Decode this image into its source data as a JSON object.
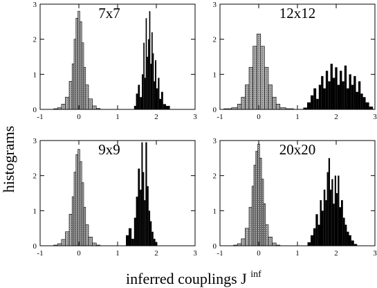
{
  "figure": {
    "ylabel": "histograms",
    "xlabel_main": "inferred couplings J",
    "xlabel_sup": "inf"
  },
  "colors": {
    "left_fill": "#a8a8a8",
    "right_fill": "#000000",
    "axes": "#000000"
  },
  "chart_data": [
    {
      "type": "histogram",
      "title": "7x7",
      "xlim": [
        -1,
        3
      ],
      "ylim": [
        0,
        3
      ],
      "xticks": [
        "-1",
        "0",
        "1",
        "2",
        "3"
      ],
      "yticks": [
        "0",
        "1",
        "2",
        "3"
      ],
      "series": [
        {
          "values": [
            [
              -0.6,
              0.02
            ],
            [
              -0.5,
              0.05
            ],
            [
              -0.4,
              0.15
            ],
            [
              -0.3,
              0.35
            ],
            [
              -0.2,
              0.8
            ],
            [
              -0.15,
              1.3
            ],
            [
              -0.1,
              2.0
            ],
            [
              -0.05,
              2.6
            ],
            [
              0.0,
              2.8
            ],
            [
              0.05,
              2.5
            ],
            [
              0.1,
              1.9
            ],
            [
              0.15,
              1.2
            ],
            [
              0.2,
              0.7
            ],
            [
              0.3,
              0.3
            ],
            [
              0.4,
              0.1
            ],
            [
              0.5,
              0.03
            ]
          ]
        },
        {
          "values": [
            [
              1.45,
              0.1
            ],
            [
              1.5,
              0.45
            ],
            [
              1.55,
              0.7
            ],
            [
              1.6,
              0.35
            ],
            [
              1.65,
              1.0
            ],
            [
              1.68,
              1.9
            ],
            [
              1.71,
              0.9
            ],
            [
              1.74,
              2.6
            ],
            [
              1.77,
              1.5
            ],
            [
              1.8,
              2.0
            ],
            [
              1.83,
              2.8
            ],
            [
              1.86,
              1.3
            ],
            [
              1.89,
              2.2
            ],
            [
              1.92,
              1.6
            ],
            [
              1.95,
              0.8
            ],
            [
              1.98,
              1.4
            ],
            [
              2.02,
              0.6
            ],
            [
              2.06,
              0.9
            ],
            [
              2.1,
              0.3
            ],
            [
              2.15,
              0.5
            ],
            [
              2.2,
              0.15
            ],
            [
              2.3,
              0.1
            ]
          ]
        }
      ]
    },
    {
      "type": "histogram",
      "title": "12x12",
      "xlim": [
        -1,
        3
      ],
      "ylim": [
        0,
        3
      ],
      "xticks": [
        "-1",
        "0",
        "1",
        "2",
        "3"
      ],
      "yticks": [
        "0",
        "1",
        "2",
        "3"
      ],
      "series": [
        {
          "values": [
            [
              -0.8,
              0.02
            ],
            [
              -0.6,
              0.05
            ],
            [
              -0.5,
              0.15
            ],
            [
              -0.4,
              0.35
            ],
            [
              -0.3,
              0.7
            ],
            [
              -0.2,
              1.2
            ],
            [
              -0.1,
              1.8
            ],
            [
              0.0,
              2.15
            ],
            [
              0.1,
              1.8
            ],
            [
              0.2,
              1.2
            ],
            [
              0.3,
              0.7
            ],
            [
              0.4,
              0.35
            ],
            [
              0.5,
              0.15
            ],
            [
              0.6,
              0.05
            ],
            [
              0.8,
              0.02
            ]
          ]
        },
        {
          "values": [
            [
              1.2,
              0.05
            ],
            [
              1.3,
              0.2
            ],
            [
              1.38,
              0.4
            ],
            [
              1.45,
              0.6
            ],
            [
              1.52,
              0.3
            ],
            [
              1.58,
              0.7
            ],
            [
              1.64,
              0.95
            ],
            [
              1.7,
              0.6
            ],
            [
              1.76,
              1.1
            ],
            [
              1.82,
              0.8
            ],
            [
              1.88,
              1.3
            ],
            [
              1.94,
              0.9
            ],
            [
              2.0,
              1.2
            ],
            [
              2.06,
              0.7
            ],
            [
              2.12,
              1.1
            ],
            [
              2.18,
              0.8
            ],
            [
              2.24,
              1.25
            ],
            [
              2.3,
              0.6
            ],
            [
              2.36,
              1.0
            ],
            [
              2.42,
              0.7
            ],
            [
              2.48,
              0.95
            ],
            [
              2.54,
              0.5
            ],
            [
              2.6,
              0.8
            ],
            [
              2.66,
              0.45
            ],
            [
              2.72,
              0.35
            ],
            [
              2.8,
              0.2
            ],
            [
              2.9,
              0.08
            ]
          ]
        }
      ]
    },
    {
      "type": "histogram",
      "title": "9x9",
      "xlim": [
        -1,
        3
      ],
      "ylim": [
        0,
        3
      ],
      "xticks": [
        "-1",
        "0",
        "1",
        "2",
        "3"
      ],
      "yticks": [
        "0",
        "1",
        "2",
        "3"
      ],
      "series": [
        {
          "values": [
            [
              -0.6,
              0.02
            ],
            [
              -0.5,
              0.06
            ],
            [
              -0.4,
              0.18
            ],
            [
              -0.3,
              0.4
            ],
            [
              -0.2,
              0.9
            ],
            [
              -0.15,
              1.4
            ],
            [
              -0.1,
              2.1
            ],
            [
              -0.05,
              2.6
            ],
            [
              0.0,
              2.75
            ],
            [
              0.05,
              2.4
            ],
            [
              0.1,
              1.8
            ],
            [
              0.15,
              1.1
            ],
            [
              0.2,
              0.6
            ],
            [
              0.3,
              0.25
            ],
            [
              0.4,
              0.08
            ],
            [
              0.5,
              0.02
            ]
          ]
        },
        {
          "values": [
            [
              1.25,
              0.3
            ],
            [
              1.32,
              0.5
            ],
            [
              1.4,
              0.2
            ],
            [
              1.45,
              0.8
            ],
            [
              1.5,
              1.4
            ],
            [
              1.55,
              2.2
            ],
            [
              1.6,
              1.6
            ],
            [
              1.63,
              2.95
            ],
            [
              1.67,
              2.1
            ],
            [
              1.7,
              1.3
            ],
            [
              1.74,
              2.95
            ],
            [
              1.78,
              1.7
            ],
            [
              1.82,
              1.0
            ],
            [
              1.86,
              0.7
            ],
            [
              1.9,
              0.4
            ],
            [
              1.95,
              0.2
            ],
            [
              2.0,
              0.1
            ]
          ]
        }
      ]
    },
    {
      "type": "histogram",
      "title": "20x20",
      "xlim": [
        -1,
        3
      ],
      "ylim": [
        0,
        3
      ],
      "xticks": [
        "-1",
        "0",
        "1",
        "2",
        "3"
      ],
      "yticks": [
        "0",
        "1",
        "2",
        "3"
      ],
      "series": [
        {
          "values": [
            [
              -0.6,
              0.02
            ],
            [
              -0.5,
              0.06
            ],
            [
              -0.4,
              0.2
            ],
            [
              -0.3,
              0.5
            ],
            [
              -0.2,
              1.1
            ],
            [
              -0.15,
              1.7
            ],
            [
              -0.1,
              2.3
            ],
            [
              -0.05,
              2.7
            ],
            [
              0.0,
              2.9
            ],
            [
              0.05,
              2.5
            ],
            [
              0.1,
              1.9
            ],
            [
              0.15,
              1.2
            ],
            [
              0.2,
              0.6
            ],
            [
              0.3,
              0.25
            ],
            [
              0.4,
              0.08
            ],
            [
              0.5,
              0.02
            ]
          ]
        },
        {
          "values": [
            [
              1.3,
              0.1
            ],
            [
              1.38,
              0.3
            ],
            [
              1.44,
              0.5
            ],
            [
              1.5,
              0.9
            ],
            [
              1.56,
              0.6
            ],
            [
              1.6,
              1.3
            ],
            [
              1.65,
              1.0
            ],
            [
              1.7,
              1.6
            ],
            [
              1.74,
              1.3
            ],
            [
              1.78,
              2.1
            ],
            [
              1.82,
              2.5
            ],
            [
              1.86,
              1.6
            ],
            [
              1.9,
              1.9
            ],
            [
              1.94,
              1.2
            ],
            [
              1.98,
              2.0
            ],
            [
              2.02,
              1.5
            ],
            [
              2.06,
              2.0
            ],
            [
              2.1,
              1.1
            ],
            [
              2.15,
              1.3
            ],
            [
              2.2,
              0.8
            ],
            [
              2.25,
              0.6
            ],
            [
              2.3,
              0.4
            ],
            [
              2.36,
              0.3
            ],
            [
              2.42,
              0.15
            ],
            [
              2.5,
              0.05
            ]
          ]
        }
      ]
    }
  ]
}
